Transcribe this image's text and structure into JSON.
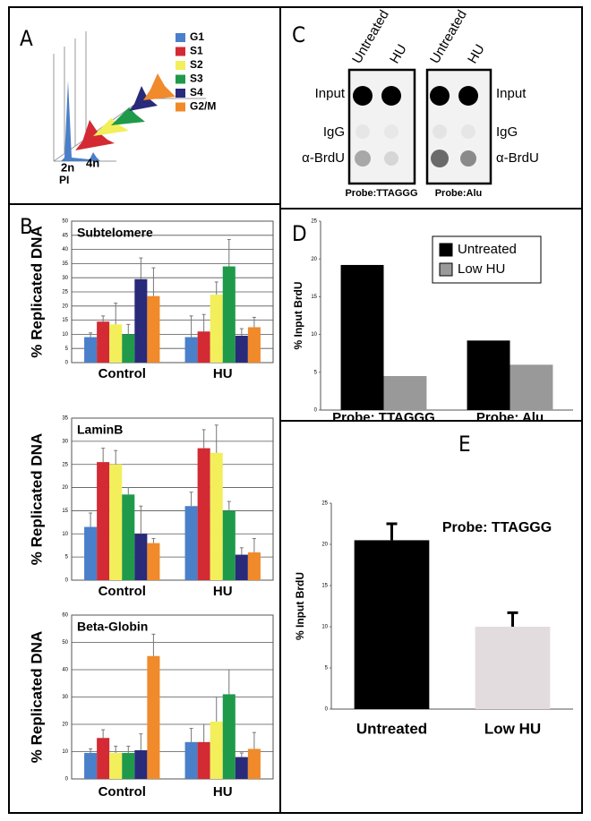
{
  "panel_labels": [
    "A",
    "B",
    "C",
    "D",
    "E"
  ],
  "panel_a": {
    "legend": [
      {
        "name": "G1",
        "color": "#4a7fc9"
      },
      {
        "name": "S1",
        "color": "#d32a34"
      },
      {
        "name": "S2",
        "color": "#f2ef5a"
      },
      {
        "name": "S3",
        "color": "#1f9a4a"
      },
      {
        "name": "S4",
        "color": "#2a2a7a"
      },
      {
        "name": "G2/M",
        "color": "#f08a2a"
      }
    ],
    "axis_labels": [
      "2n",
      "4n",
      "PI"
    ]
  },
  "panel_c": {
    "columns": [
      "Untreated",
      "HU",
      "Untreated",
      "HU"
    ],
    "rows_left": [
      "Input",
      "IgG",
      "α-BrdU"
    ],
    "rows_right": [
      "Input",
      "IgG",
      "α-BrdU"
    ],
    "probes": [
      "Probe:TTAGGG",
      "Probe:Alu"
    ]
  },
  "chart_data": [
    {
      "type": "bar",
      "title": "Subtelomere",
      "y_label": "% Replicated DNA",
      "categories": [
        "Control",
        "HU"
      ],
      "grid": true,
      "ylim": [
        0,
        50
      ],
      "yticks": [
        0,
        5,
        10,
        15,
        20,
        25,
        30,
        35,
        40,
        45,
        50
      ],
      "series": [
        {
          "color": "#4a7fc9",
          "values": [
            9,
            9
          ],
          "errors": [
            1.5,
            7.5
          ]
        },
        {
          "color": "#d32a34",
          "values": [
            14.5,
            11
          ],
          "errors": [
            2,
            6
          ]
        },
        {
          "color": "#f2ef5a",
          "values": [
            13.5,
            24
          ],
          "errors": [
            7.5,
            4.5
          ]
        },
        {
          "color": "#1f9a4a",
          "values": [
            10,
            34
          ],
          "errors": [
            3.5,
            9.5
          ]
        },
        {
          "color": "#2a2a7a",
          "values": [
            29.5,
            9.5
          ],
          "errors": [
            7.5,
            2.5
          ]
        },
        {
          "color": "#f08a2a",
          "values": [
            23.5,
            12.5
          ],
          "errors": [
            10,
            3.5
          ]
        }
      ]
    },
    {
      "type": "bar",
      "title": "LaminB",
      "y_label": "% Replicated DNA",
      "categories": [
        "Control",
        "HU"
      ],
      "grid": true,
      "ylim": [
        0,
        35
      ],
      "yticks": [
        0,
        5,
        10,
        15,
        20,
        25,
        30,
        35
      ],
      "series": [
        {
          "color": "#4a7fc9",
          "values": [
            11.5,
            16
          ],
          "errors": [
            3,
            3
          ]
        },
        {
          "color": "#d32a34",
          "values": [
            25.5,
            28.5
          ],
          "errors": [
            3,
            4
          ]
        },
        {
          "color": "#f2ef5a",
          "values": [
            25,
            27.5
          ],
          "errors": [
            3,
            6
          ]
        },
        {
          "color": "#1f9a4a",
          "values": [
            18.5,
            15
          ],
          "errors": [
            1.5,
            2
          ]
        },
        {
          "color": "#2a2a7a",
          "values": [
            10,
            5.5
          ],
          "errors": [
            6,
            1.5
          ]
        },
        {
          "color": "#f08a2a",
          "values": [
            8,
            6
          ],
          "errors": [
            1,
            3
          ]
        }
      ]
    },
    {
      "type": "bar",
      "title": "Beta-Globin",
      "y_label": "% Replicated DNA",
      "categories": [
        "Control",
        "HU"
      ],
      "grid": true,
      "ylim": [
        0,
        60
      ],
      "yticks": [
        0,
        10,
        20,
        30,
        40,
        50,
        60
      ],
      "series": [
        {
          "color": "#4a7fc9",
          "values": [
            9.5,
            13.5
          ],
          "errors": [
            1.5,
            5
          ]
        },
        {
          "color": "#d32a34",
          "values": [
            15,
            13.5
          ],
          "errors": [
            3,
            6.5
          ]
        },
        {
          "color": "#f2ef5a",
          "values": [
            9.5,
            21
          ],
          "errors": [
            2.5,
            9
          ]
        },
        {
          "color": "#1f9a4a",
          "values": [
            9.5,
            31
          ],
          "errors": [
            2.5,
            9
          ]
        },
        {
          "color": "#2a2a7a",
          "values": [
            10.5,
            8
          ],
          "errors": [
            6,
            1.5
          ]
        },
        {
          "color": "#f08a2a",
          "values": [
            45,
            11
          ],
          "errors": [
            8,
            6
          ]
        }
      ]
    },
    {
      "type": "bar",
      "y_label": "% Input BrdU",
      "categories": [
        "Probe: TTAGGG",
        "Probe:  Alu"
      ],
      "grid": false,
      "legend": "top-right",
      "ylim": [
        0,
        25
      ],
      "yticks": [
        0,
        5,
        10,
        15,
        20,
        25
      ],
      "series": [
        {
          "name": "Untreated",
          "color": "#000000",
          "values": [
            19.2,
            9.2
          ]
        },
        {
          "name": "Low HU",
          "color": "#999999",
          "values": [
            4.5,
            6.0
          ]
        }
      ]
    },
    {
      "type": "bar",
      "y_label": "% Input BrdU",
      "annotation": "Probe: TTAGGG",
      "categories": [
        "Untreated",
        "Low HU"
      ],
      "grid": false,
      "ylim": [
        0,
        25
      ],
      "yticks": [
        0,
        5,
        10,
        15,
        20,
        25
      ],
      "values": [
        20.5,
        10
      ],
      "errors": [
        2,
        1.7
      ],
      "colors": [
        "#000000",
        "#e2dcdf"
      ]
    }
  ]
}
